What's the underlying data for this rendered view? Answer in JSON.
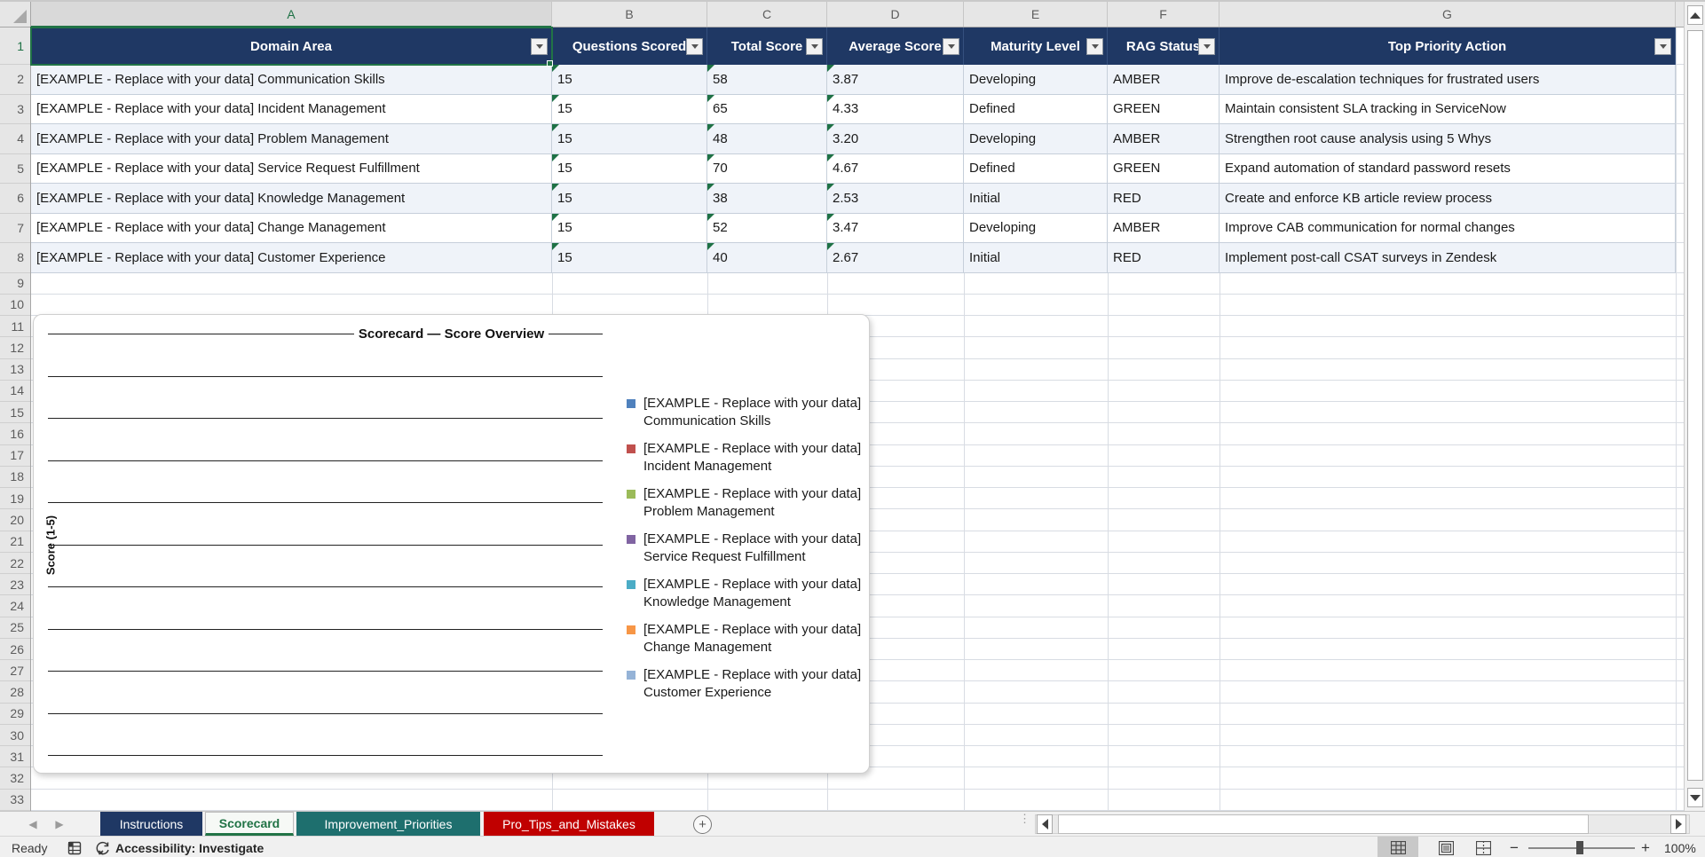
{
  "colors": {
    "header_navy": "#1f3864",
    "accent_green": "#217346",
    "banded_row": "#eff3f9",
    "tab_teal": "#1e6f6e",
    "tab_red": "#c00000",
    "legend_palette": [
      "#4F81BD",
      "#C0504D",
      "#9BBB59",
      "#8064A2",
      "#4BACC6",
      "#F79646",
      "#95B3D7"
    ]
  },
  "spreadsheet": {
    "column_letters": [
      "A",
      "B",
      "C",
      "D",
      "E",
      "F",
      "G"
    ],
    "selected_column": "A",
    "selected_row": 1,
    "row_count": 33,
    "table": {
      "headers": [
        "Domain Area",
        "Questions Scored",
        "Total Score",
        "Average Score",
        "Maturity Level",
        "RAG Status",
        "Top Priority Action"
      ],
      "rows": [
        {
          "domain": "[EXAMPLE - Replace with your data] Communication Skills",
          "questions": "15",
          "total": "58",
          "average": "3.87",
          "maturity": "Developing",
          "rag": "AMBER",
          "action": "Improve de-escalation techniques for frustrated users"
        },
        {
          "domain": "[EXAMPLE - Replace with your data] Incident Management",
          "questions": "15",
          "total": "65",
          "average": "4.33",
          "maturity": "Defined",
          "rag": "GREEN",
          "action": "Maintain consistent SLA tracking in ServiceNow"
        },
        {
          "domain": "[EXAMPLE - Replace with your data] Problem Management",
          "questions": "15",
          "total": "48",
          "average": "3.20",
          "maturity": "Developing",
          "rag": "AMBER",
          "action": "Strengthen root cause analysis using 5 Whys"
        },
        {
          "domain": "[EXAMPLE - Replace with your data] Service Request Fulfillment",
          "questions": "15",
          "total": "70",
          "average": "4.67",
          "maturity": "Defined",
          "rag": "GREEN",
          "action": "Expand automation of standard password resets"
        },
        {
          "domain": "[EXAMPLE - Replace with your data] Knowledge Management",
          "questions": "15",
          "total": "38",
          "average": "2.53",
          "maturity": "Initial",
          "rag": "RED",
          "action": "Create and enforce KB article review process"
        },
        {
          "domain": "[EXAMPLE - Replace with your data] Change Management",
          "questions": "15",
          "total": "52",
          "average": "3.47",
          "maturity": "Developing",
          "rag": "AMBER",
          "action": "Improve CAB communication for normal changes"
        },
        {
          "domain": "[EXAMPLE - Replace with your data] Customer Experience",
          "questions": "15",
          "total": "40",
          "average": "2.67",
          "maturity": "Initial",
          "rag": "RED",
          "action": "Implement post-call CSAT surveys in Zendesk"
        }
      ]
    }
  },
  "chart_data": {
    "type": "bar",
    "title": "Scorecard — Score Overview",
    "ylabel": "Score (1-5)",
    "ylim": [
      0,
      5
    ],
    "gridline_count": 11,
    "grid": true,
    "legend_position": "right",
    "values_visible": false,
    "categories": [
      "[EXAMPLE - Replace with your data] Communication Skills",
      "[EXAMPLE - Replace with your data] Incident Management",
      "[EXAMPLE - Replace with your data] Problem Management",
      "[EXAMPLE - Replace with your data] Service Request Fulfillment",
      "[EXAMPLE - Replace with your data] Knowledge Management",
      "[EXAMPLE - Replace with your data] Change Management",
      "[EXAMPLE - Replace with your data] Customer Experience"
    ],
    "legend": [
      {
        "line1": "[EXAMPLE - Replace with your data]",
        "line2": "Communication Skills",
        "color": "#4F81BD"
      },
      {
        "line1": "[EXAMPLE - Replace with your data]",
        "line2": "Incident Management",
        "color": "#C0504D"
      },
      {
        "line1": "[EXAMPLE - Replace with your data]",
        "line2": "Problem Management",
        "color": "#9BBB59"
      },
      {
        "line1": "[EXAMPLE - Replace with your data]",
        "line2": "Service Request Fulfillment",
        "color": "#8064A2"
      },
      {
        "line1": "[EXAMPLE - Replace with your data]",
        "line2": "Knowledge Management",
        "color": "#4BACC6"
      },
      {
        "line1": "[EXAMPLE - Replace with your data]",
        "line2": "Change Management",
        "color": "#F79646"
      },
      {
        "line1": "[EXAMPLE - Replace with your data]",
        "line2": "Customer Experience",
        "color": "#95B3D7"
      }
    ]
  },
  "sheet_tabs": {
    "items": [
      {
        "label": "Instructions",
        "bg": "#1f3864",
        "fg": "#ffffff",
        "active": false
      },
      {
        "label": "Scorecard",
        "bg": "#f6f9f6",
        "fg": "#217346",
        "active": true
      },
      {
        "label": "Improvement_Priorities",
        "bg": "#1e6f6e",
        "fg": "#ffffff",
        "active": false
      },
      {
        "label": "Pro_Tips_and_Mistakes",
        "bg": "#c00000",
        "fg": "#ffffff",
        "active": false
      }
    ],
    "add_label": "+"
  },
  "status_bar": {
    "ready": "Ready",
    "accessibility": "Accessibility: Investigate",
    "zoom_level": "100%"
  }
}
